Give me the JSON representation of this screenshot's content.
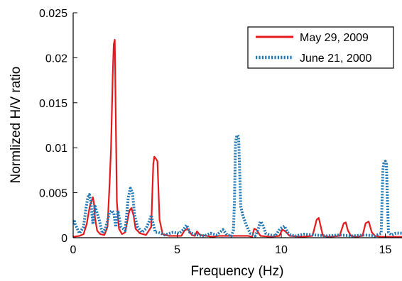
{
  "chart_data": {
    "type": "line",
    "xlabel": "Frequency (Hz)",
    "ylabel": "Normlized H/V ratio",
    "xlim": [
      0,
      15.8
    ],
    "ylim": [
      0,
      0.025
    ],
    "xticks": [
      0,
      5,
      10,
      15
    ],
    "xtick_labels": [
      "0",
      "5",
      "10",
      "15"
    ],
    "yticks": [
      0,
      0.005,
      0.01,
      0.015,
      0.02,
      0.025
    ],
    "ytick_labels": [
      "0",
      "0.005",
      "0.01",
      "0.015",
      "0.02",
      "0.025"
    ],
    "grid": false,
    "legend_position": "top-right",
    "series": [
      {
        "name": "May 29, 2009",
        "color": "#e31a1c",
        "line_style": "solid",
        "x": [
          0,
          0.3,
          0.5,
          0.65,
          0.8,
          0.95,
          1.0,
          1.05,
          1.15,
          1.3,
          1.5,
          1.65,
          1.75,
          1.82,
          1.9,
          1.95,
          2.0,
          2.05,
          2.1,
          2.2,
          2.35,
          2.5,
          2.6,
          2.7,
          2.8,
          2.9,
          3.0,
          3.2,
          3.5,
          3.75,
          3.85,
          3.9,
          3.97,
          4.05,
          4.15,
          4.3,
          4.6,
          5.0,
          5.2,
          5.35,
          5.5,
          5.7,
          5.85,
          5.95,
          6.1,
          6.4,
          6.7,
          7.0,
          7.5,
          8.0,
          8.4,
          8.6,
          8.7,
          8.8,
          9.0,
          9.5,
          9.9,
          10.05,
          10.2,
          10.4,
          11.0,
          11.5,
          11.7,
          11.8,
          11.9,
          12.0,
          12.3,
          12.8,
          13.0,
          13.1,
          13.2,
          13.35,
          13.6,
          13.9,
          14.05,
          14.2,
          14.35,
          14.5,
          14.8,
          15.0,
          15.4,
          15.8
        ],
        "y": [
          0.0001,
          0.0002,
          0.0004,
          0.0015,
          0.0035,
          0.0045,
          0.0038,
          0.0022,
          0.0008,
          0.0004,
          0.0003,
          0.0012,
          0.006,
          0.01,
          0.018,
          0.0215,
          0.022,
          0.013,
          0.004,
          0.001,
          0.0004,
          0.0006,
          0.0018,
          0.003,
          0.0033,
          0.0025,
          0.001,
          0.0005,
          0.0003,
          0.0012,
          0.0082,
          0.009,
          0.0088,
          0.0085,
          0.002,
          0.0004,
          0.0002,
          0.0002,
          0.0002,
          0.0008,
          0.001,
          0.0003,
          0.0002,
          0.0007,
          0.0003,
          0.0002,
          0.0001,
          0.0002,
          0.0002,
          0.0002,
          0.0002,
          0.0001,
          0.001,
          0.0009,
          0.0002,
          0.0001,
          0.0002,
          0.0009,
          0.0007,
          0.0002,
          0.0001,
          0.0002,
          0.002,
          0.0022,
          0.0012,
          0.0002,
          0.0001,
          0.0002,
          0.0016,
          0.0017,
          0.0008,
          0.0002,
          0.0001,
          0.0002,
          0.0016,
          0.0018,
          0.0006,
          0.0002,
          0.0001,
          0.0001,
          0.0001,
          0.0001
        ]
      },
      {
        "name": "June 21, 2000",
        "color": "#1f77b4",
        "line_style": "dotted",
        "x": [
          0,
          0.05,
          0.1,
          0.3,
          0.5,
          0.6,
          0.7,
          0.78,
          0.85,
          0.95,
          1.05,
          1.25,
          1.4,
          1.55,
          1.75,
          1.85,
          1.95,
          2.05,
          2.15,
          2.3,
          2.5,
          2.65,
          2.75,
          2.85,
          2.95,
          3.1,
          3.3,
          3.5,
          3.65,
          3.75,
          3.85,
          3.95,
          4.1,
          4.4,
          4.8,
          5.1,
          5.3,
          5.45,
          5.6,
          5.8,
          6.0,
          6.3,
          6.6,
          6.9,
          7.2,
          7.4,
          7.6,
          7.7,
          7.75,
          7.8,
          7.85,
          7.9,
          7.95,
          8.05,
          8.15,
          8.3,
          8.5,
          8.75,
          8.9,
          9.0,
          9.1,
          9.25,
          9.45,
          9.7,
          9.95,
          10.15,
          10.3,
          10.45,
          10.7,
          11.1,
          11.6,
          12.2,
          12.8,
          13.4,
          14.0,
          14.5,
          14.8,
          14.88,
          14.93,
          15.0,
          15.05,
          15.15,
          15.3,
          15.5,
          15.8
        ],
        "y": [
          0.0015,
          0.002,
          0.0015,
          0.0005,
          0.0012,
          0.003,
          0.0045,
          0.0048,
          0.004,
          0.0015,
          0.0035,
          0.002,
          0.0005,
          0.001,
          0.0028,
          0.003,
          0.0028,
          0.0012,
          0.003,
          0.0012,
          0.0008,
          0.0045,
          0.0055,
          0.005,
          0.0025,
          0.0012,
          0.0006,
          0.001,
          0.0018,
          0.0025,
          0.0015,
          0.0006,
          0.0006,
          0.0003,
          0.0006,
          0.0005,
          0.0009,
          0.0014,
          0.0006,
          0.0004,
          0.0003,
          0.0002,
          0.0005,
          0.0003,
          0.0009,
          0.0003,
          0.0002,
          0.0008,
          0.004,
          0.0105,
          0.0112,
          0.0114,
          0.0112,
          0.0035,
          0.0025,
          0.0015,
          0.0005,
          0.0002,
          0.001,
          0.0018,
          0.0015,
          0.0005,
          0.0003,
          0.0002,
          0.001,
          0.0013,
          0.0006,
          0.0003,
          0.0002,
          0.0004,
          0.0003,
          0.0002,
          0.0003,
          0.0002,
          0.0003,
          0.0002,
          0.0005,
          0.0075,
          0.0083,
          0.0085,
          0.0082,
          0.0006,
          0.0003,
          0.0005,
          0.0005
        ]
      }
    ]
  }
}
